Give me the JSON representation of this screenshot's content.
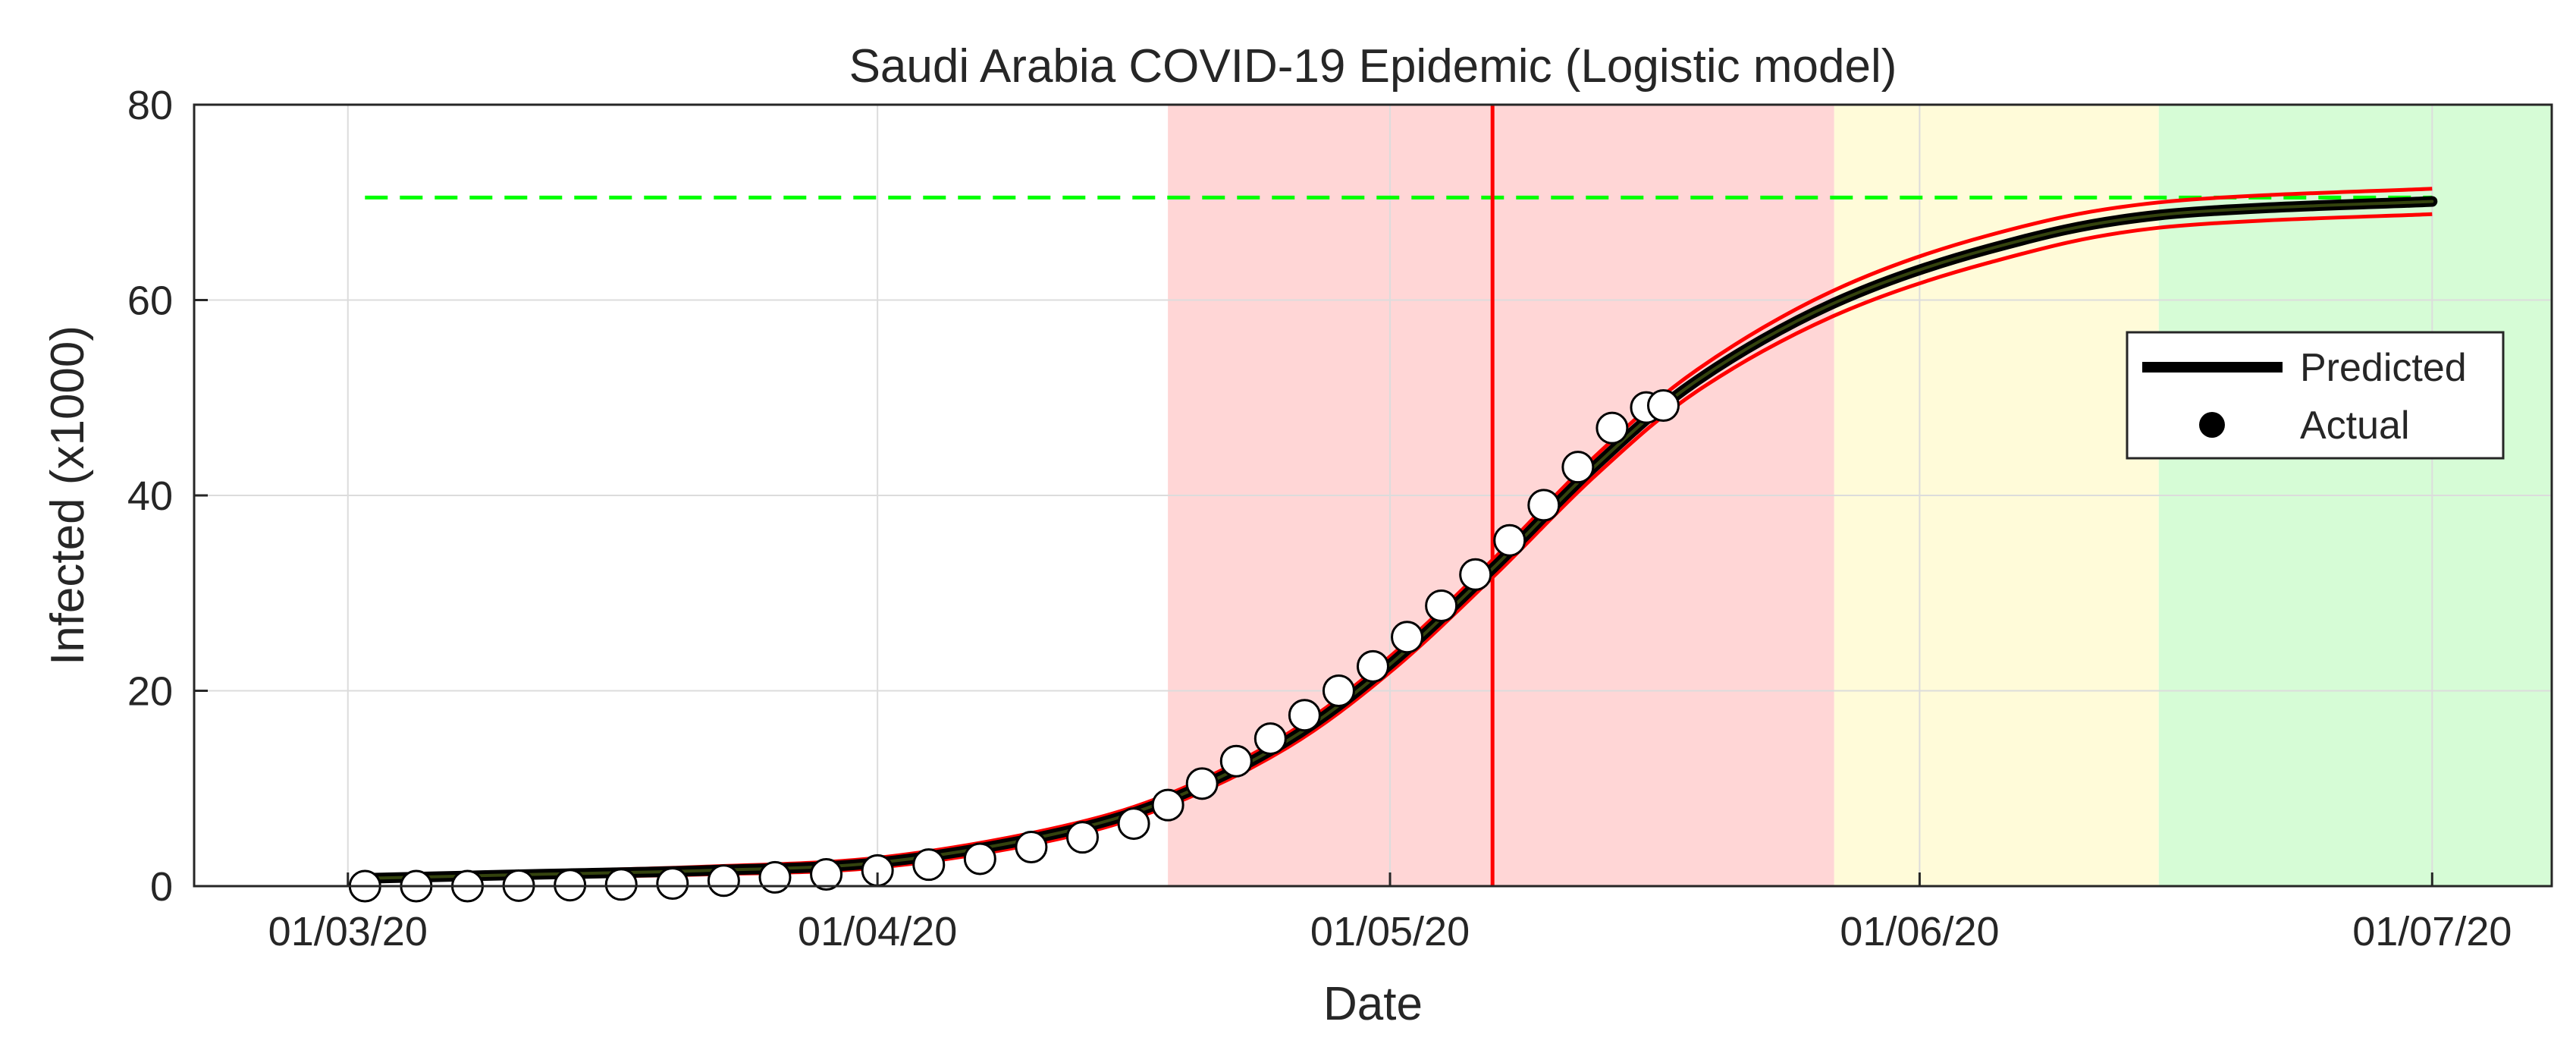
{
  "chart_data": {
    "type": "line",
    "title": "Saudi Arabia COVID-19 Epidemic (Logistic model)",
    "xlabel": "Date",
    "ylabel": "Infected (x1000)",
    "x_axis_type": "date",
    "xlim": [
      "2020-02-21",
      "2020-07-08"
    ],
    "ylim": [
      0,
      80
    ],
    "x_ticks": [
      {
        "date": "2020-03-01",
        "label": "01/03/20"
      },
      {
        "date": "2020-04-01",
        "label": "01/04/20"
      },
      {
        "date": "2020-05-01",
        "label": "01/05/20"
      },
      {
        "date": "2020-06-01",
        "label": "01/06/20"
      },
      {
        "date": "2020-07-01",
        "label": "01/07/20"
      }
    ],
    "y_ticks": [
      0,
      20,
      40,
      60,
      80
    ],
    "grid": true,
    "legend": {
      "position": "right",
      "entries": [
        {
          "label": "Predicted",
          "marker": "thick-line",
          "color": "#000000"
        },
        {
          "label": "Actual",
          "marker": "filled-circle",
          "color": "#000000"
        }
      ]
    },
    "phase_bands": [
      {
        "start": "2020-04-18",
        "end": "2020-05-27",
        "color": "#ffd6d6"
      },
      {
        "start": "2020-05-27",
        "end": "2020-06-15",
        "color": "#fffbd9"
      },
      {
        "start": "2020-06-15",
        "end": "2020-07-08",
        "color": "#d6fcd6"
      }
    ],
    "inflection_date": "2020-05-07",
    "asymptote": 70.5,
    "predicted_range": [
      "2020-03-02",
      "2020-07-01"
    ],
    "series": [
      {
        "name": "Predicted",
        "color": "#000000",
        "x": [
          "2020-03-02",
          "2020-03-12",
          "2020-03-22",
          "2020-04-01",
          "2020-04-11",
          "2020-04-18",
          "2020-04-25",
          "2020-05-01",
          "2020-05-07",
          "2020-05-13",
          "2020-05-19",
          "2020-05-27",
          "2020-06-05",
          "2020-06-15",
          "2020-07-01"
        ],
        "y": [
          0.8,
          1.2,
          1.6,
          2.4,
          5.2,
          8.8,
          14.9,
          22.7,
          32.5,
          43.0,
          51.8,
          59.7,
          65.2,
          68.7,
          70.1
        ]
      },
      {
        "name": "Predicted upper bound",
        "color": "#ff0000",
        "x": [
          "2020-03-02",
          "2020-03-12",
          "2020-03-22",
          "2020-04-01",
          "2020-04-11",
          "2020-04-18",
          "2020-04-25",
          "2020-05-01",
          "2020-05-07",
          "2020-05-13",
          "2020-05-19",
          "2020-05-27",
          "2020-06-05",
          "2020-06-15",
          "2020-07-01"
        ],
        "y": [
          1.1,
          1.5,
          2.0,
          2.9,
          5.8,
          9.4,
          15.6,
          23.5,
          33.4,
          44.0,
          52.9,
          61.0,
          66.6,
          70.0,
          71.4
        ]
      },
      {
        "name": "Predicted lower bound",
        "color": "#ff0000",
        "x": [
          "2020-03-02",
          "2020-03-12",
          "2020-03-22",
          "2020-04-01",
          "2020-04-11",
          "2020-04-18",
          "2020-04-25",
          "2020-05-01",
          "2020-05-07",
          "2020-05-13",
          "2020-05-19",
          "2020-05-27",
          "2020-06-05",
          "2020-06-15",
          "2020-07-01"
        ],
        "y": [
          0.5,
          0.9,
          1.2,
          1.9,
          4.6,
          8.2,
          14.2,
          21.9,
          31.6,
          42.0,
          50.7,
          58.4,
          63.8,
          67.4,
          68.8
        ]
      },
      {
        "name": "Actual",
        "color": "#ffffff",
        "x": [
          "2020-03-02",
          "2020-03-05",
          "2020-03-08",
          "2020-03-11",
          "2020-03-14",
          "2020-03-17",
          "2020-03-20",
          "2020-03-23",
          "2020-03-26",
          "2020-03-29",
          "2020-04-01",
          "2020-04-04",
          "2020-04-07",
          "2020-04-10",
          "2020-04-13",
          "2020-04-16",
          "2020-04-18",
          "2020-04-20",
          "2020-04-22",
          "2020-04-24",
          "2020-04-26",
          "2020-04-28",
          "2020-04-30",
          "2020-05-02",
          "2020-05-04",
          "2020-05-06",
          "2020-05-08",
          "2020-05-10",
          "2020-05-12",
          "2020-05-14",
          "2020-05-16",
          "2020-05-17"
        ],
        "y": [
          0.0,
          0.0,
          0.0,
          0.05,
          0.1,
          0.17,
          0.27,
          0.56,
          0.9,
          1.2,
          1.6,
          2.2,
          2.8,
          4.0,
          5.0,
          6.4,
          8.3,
          10.5,
          12.8,
          15.1,
          17.5,
          20.0,
          22.5,
          25.5,
          28.7,
          31.9,
          35.4,
          39.0,
          42.9,
          46.9,
          49.0,
          49.2
        ]
      }
    ]
  }
}
